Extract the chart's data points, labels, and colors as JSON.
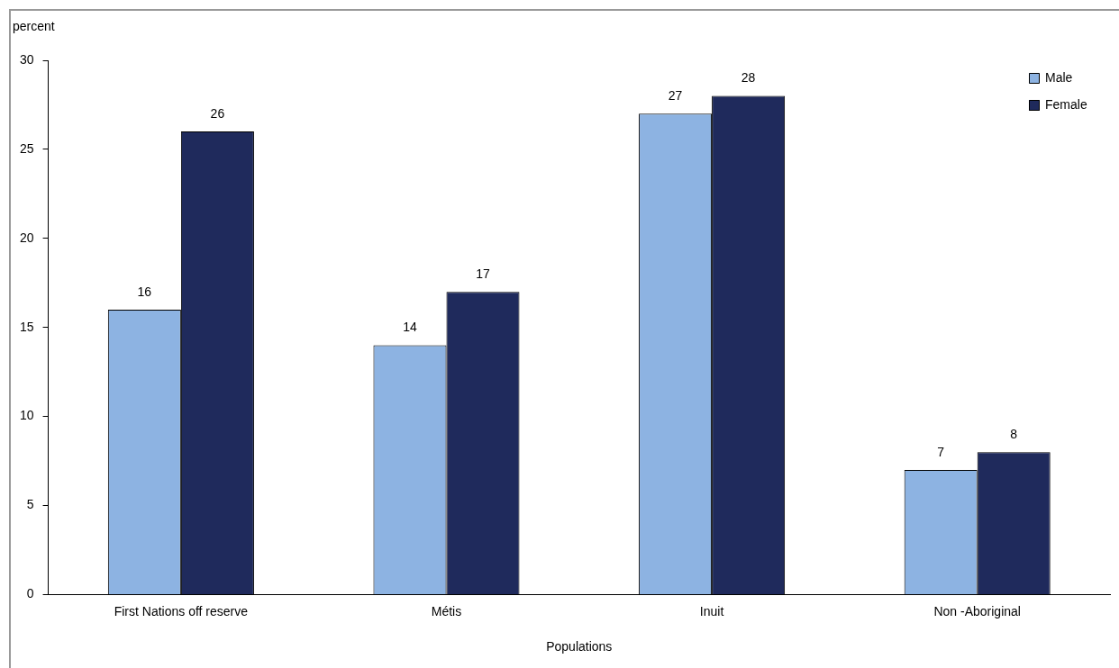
{
  "chart_data": {
    "type": "bar",
    "ylabel": "percent",
    "xlabel": "Populations",
    "categories": [
      "First Nations off reserve",
      "Métis",
      "Inuit",
      "Non -Aboriginal"
    ],
    "series": [
      {
        "name": "Male",
        "color": "#8db3e2",
        "values": [
          16,
          14,
          27,
          7
        ]
      },
      {
        "name": "Female",
        "color": "#1f2a5c",
        "values": [
          26,
          17,
          28,
          8
        ]
      }
    ],
    "ylim": [
      0,
      30
    ],
    "yticks": [
      0,
      5,
      10,
      15,
      20,
      25,
      30
    ],
    "grid": false,
    "legend": "top right",
    "data_labels": true
  }
}
